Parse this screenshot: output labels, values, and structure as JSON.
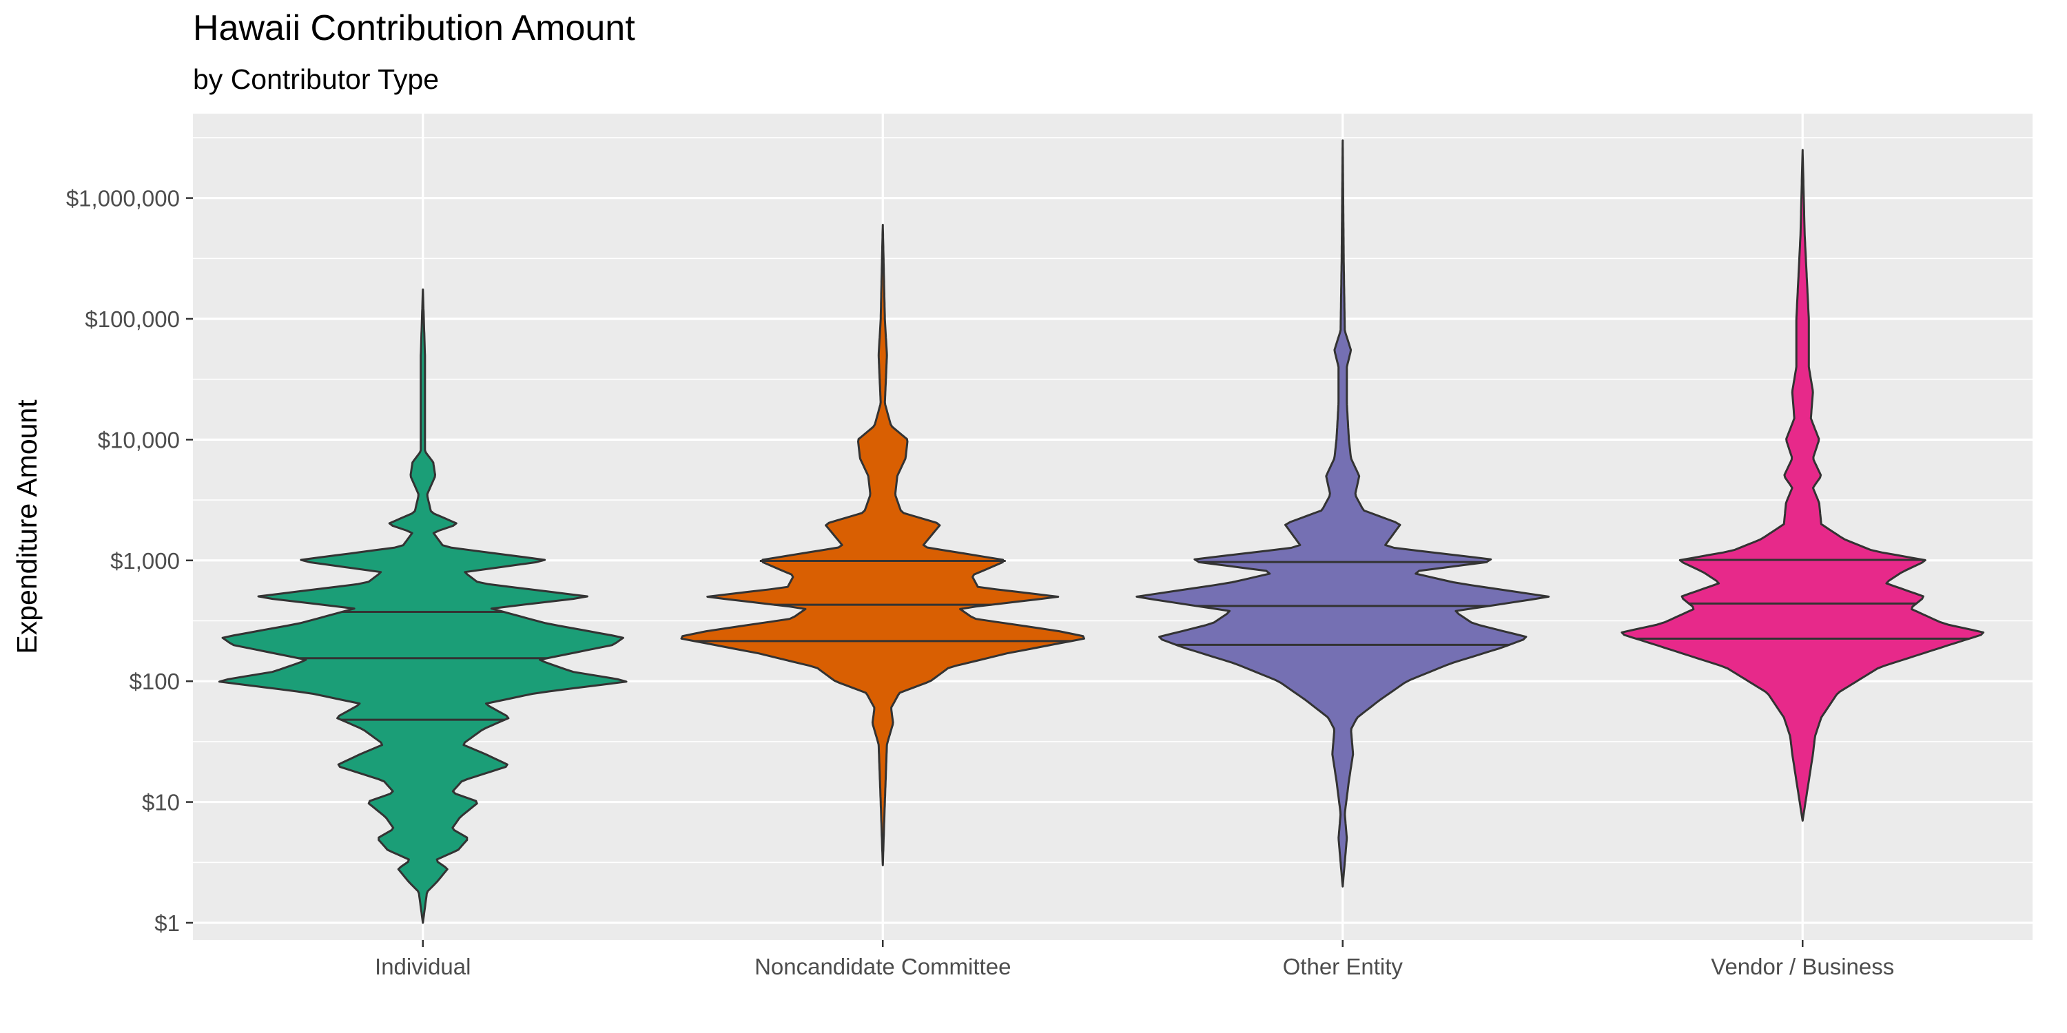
{
  "chart_data": {
    "type": "violin",
    "title": "Hawaii Contribution Amount",
    "subtitle": "by Contributor Type",
    "xlabel": "",
    "ylabel": "Expenditure Amount",
    "y_scale": "log10",
    "ylim": [
      0.72,
      5000000
    ],
    "y_ticks": [
      {
        "value": 1,
        "label": "$1"
      },
      {
        "value": 10,
        "label": "$10"
      },
      {
        "value": 100,
        "label": "$100"
      },
      {
        "value": 1000,
        "label": "$1,000"
      },
      {
        "value": 10000,
        "label": "$10,000"
      },
      {
        "value": 100000,
        "label": "$100,000"
      },
      {
        "value": 1000000,
        "label": "$1,000,000"
      }
    ],
    "grid": true,
    "legend": "none",
    "draw_quantiles": [
      0.25,
      0.5,
      0.75
    ],
    "categories": [
      "Individual",
      "Noncandidate Committee",
      "Other Entity",
      "Vendor / Business"
    ],
    "series": [
      {
        "color": "#1b9e77",
        "min": 1,
        "max": 175000,
        "quantiles": [
          48,
          155,
          375
        ],
        "density": [
          [
            1,
            0
          ],
          [
            1.8,
            0.02
          ],
          [
            2.2,
            0.07
          ],
          [
            2.8,
            0.12
          ],
          [
            3.3,
            0.06
          ],
          [
            4,
            0.17
          ],
          [
            5,
            0.22
          ],
          [
            6,
            0.14
          ],
          [
            7.5,
            0.18
          ],
          [
            10,
            0.27
          ],
          [
            12,
            0.14
          ],
          [
            15,
            0.19
          ],
          [
            20,
            0.42
          ],
          [
            25,
            0.3
          ],
          [
            30,
            0.19
          ],
          [
            40,
            0.29
          ],
          [
            50,
            0.42
          ],
          [
            65,
            0.3
          ],
          [
            80,
            0.55
          ],
          [
            100,
            1.0
          ],
          [
            120,
            0.72
          ],
          [
            150,
            0.56
          ],
          [
            200,
            0.92
          ],
          [
            230,
            0.97
          ],
          [
            300,
            0.6
          ],
          [
            400,
            0.33
          ],
          [
            500,
            0.81
          ],
          [
            650,
            0.27
          ],
          [
            800,
            0.2
          ],
          [
            1000,
            0.61
          ],
          [
            1300,
            0.1
          ],
          [
            1700,
            0.05
          ],
          [
            2000,
            0.17
          ],
          [
            2500,
            0.04
          ],
          [
            3500,
            0.02
          ],
          [
            5000,
            0.06
          ],
          [
            6500,
            0.05
          ],
          [
            8000,
            0.01
          ],
          [
            15000,
            0.01
          ],
          [
            50000,
            0.01
          ],
          [
            175000,
            0
          ]
        ]
      },
      {
        "color": "#d95f02",
        "min": 3,
        "max": 600000,
        "quantiles": [
          215,
          430,
          990
        ],
        "density": [
          [
            3,
            0
          ],
          [
            10,
            0.01
          ],
          [
            30,
            0.02
          ],
          [
            45,
            0.05
          ],
          [
            60,
            0.04
          ],
          [
            80,
            0.08
          ],
          [
            100,
            0.23
          ],
          [
            130,
            0.32
          ],
          [
            170,
            0.6
          ],
          [
            230,
            1.0
          ],
          [
            260,
            0.85
          ],
          [
            330,
            0.44
          ],
          [
            400,
            0.37
          ],
          [
            500,
            0.85
          ],
          [
            600,
            0.46
          ],
          [
            750,
            0.43
          ],
          [
            1000,
            0.6
          ],
          [
            1300,
            0.19
          ],
          [
            2000,
            0.28
          ],
          [
            2500,
            0.09
          ],
          [
            3500,
            0.06
          ],
          [
            5000,
            0.07
          ],
          [
            7000,
            0.11
          ],
          [
            10000,
            0.12
          ],
          [
            13000,
            0.04
          ],
          [
            20000,
            0.01
          ],
          [
            50000,
            0.02
          ],
          [
            100000,
            0.01
          ],
          [
            600000,
            0
          ]
        ]
      },
      {
        "color": "#7570b3",
        "min": 2,
        "max": 3000000,
        "quantiles": [
          200,
          420,
          970
        ],
        "density": [
          [
            2,
            0
          ],
          [
            5,
            0.02
          ],
          [
            8,
            0.01
          ],
          [
            15,
            0.03
          ],
          [
            25,
            0.05
          ],
          [
            40,
            0.04
          ],
          [
            50,
            0.07
          ],
          [
            70,
            0.18
          ],
          [
            100,
            0.31
          ],
          [
            140,
            0.52
          ],
          [
            190,
            0.77
          ],
          [
            230,
            0.9
          ],
          [
            300,
            0.63
          ],
          [
            380,
            0.54
          ],
          [
            500,
            1.0
          ],
          [
            650,
            0.55
          ],
          [
            800,
            0.32
          ],
          [
            1000,
            0.76
          ],
          [
            1300,
            0.2
          ],
          [
            2000,
            0.28
          ],
          [
            2600,
            0.1
          ],
          [
            3500,
            0.06
          ],
          [
            5000,
            0.08
          ],
          [
            7000,
            0.04
          ],
          [
            10000,
            0.03
          ],
          [
            20000,
            0.02
          ],
          [
            40000,
            0.02
          ],
          [
            55000,
            0.04
          ],
          [
            80000,
            0.01
          ],
          [
            300000,
            0.005
          ],
          [
            3000000,
            0
          ]
        ]
      },
      {
        "color": "#e7298a",
        "min": 7,
        "max": 2500000,
        "quantiles": [
          225,
          440,
          1010
        ],
        "density": [
          [
            7,
            0
          ],
          [
            15,
            0.03
          ],
          [
            25,
            0.05
          ],
          [
            35,
            0.06
          ],
          [
            50,
            0.09
          ],
          [
            80,
            0.17
          ],
          [
            130,
            0.37
          ],
          [
            200,
            0.71
          ],
          [
            250,
            0.89
          ],
          [
            300,
            0.68
          ],
          [
            400,
            0.52
          ],
          [
            500,
            0.59
          ],
          [
            650,
            0.4
          ],
          [
            800,
            0.48
          ],
          [
            1000,
            0.6
          ],
          [
            1200,
            0.34
          ],
          [
            1500,
            0.2
          ],
          [
            2000,
            0.09
          ],
          [
            3000,
            0.08
          ],
          [
            4000,
            0.05
          ],
          [
            5000,
            0.09
          ],
          [
            7000,
            0.05
          ],
          [
            10000,
            0.08
          ],
          [
            15000,
            0.04
          ],
          [
            25000,
            0.05
          ],
          [
            40000,
            0.03
          ],
          [
            100000,
            0.03
          ],
          [
            500000,
            0.01
          ],
          [
            2500000,
            0
          ]
        ]
      }
    ]
  }
}
